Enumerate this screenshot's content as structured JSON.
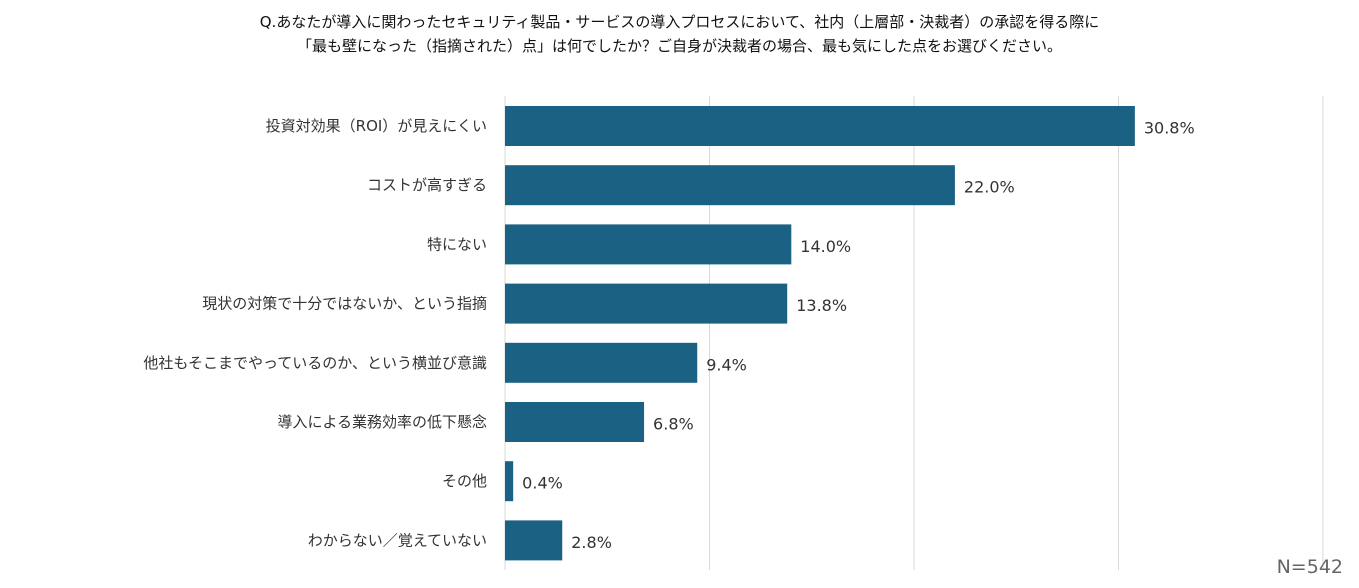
{
  "title_lines": [
    "Q.あなたが導入に関わったセキュリティ製品・サービスの導入プロセスにおいて、社内（上層部・決裁者）の承認を得る際に",
    "「最も壁になった（指摘された）点」は何でしたか？ご自身が決裁者の場合、最も気にした点をお選びください。"
  ],
  "sample_size": "N=542",
  "colors": {
    "bar": "#1b6184",
    "grid": "#d9d9d9",
    "label": "#333333"
  },
  "chart_data": {
    "type": "bar",
    "orientation": "horizontal",
    "title": "Q.あなたが導入に関わったセキュリティ製品・サービスの導入プロセスにおいて、社内（上層部・決裁者）の承認を得る際に「最も壁になった（指摘された）点」は何でしたか？ご自身が決裁者の場合、最も気にした点をお選びください。",
    "categories": [
      "投資対効果（ROI）が見えにくい",
      "コストが高すぎる",
      "特にない",
      "現状の対策で十分ではないか、という指摘",
      "他社もそこまでやっているのか、という横並び意識",
      "導入による業務効率の低下懸念",
      "その他",
      "わからない／覚えていない"
    ],
    "values": [
      30.8,
      22.0,
      14.0,
      13.8,
      9.4,
      6.8,
      0.4,
      2.8
    ],
    "value_labels": [
      "30.8%",
      "22.0%",
      "14.0%",
      "13.8%",
      "9.4%",
      "6.8%",
      "0.4%",
      "2.8%"
    ],
    "xlim": [
      0,
      40
    ],
    "grid": true
  }
}
